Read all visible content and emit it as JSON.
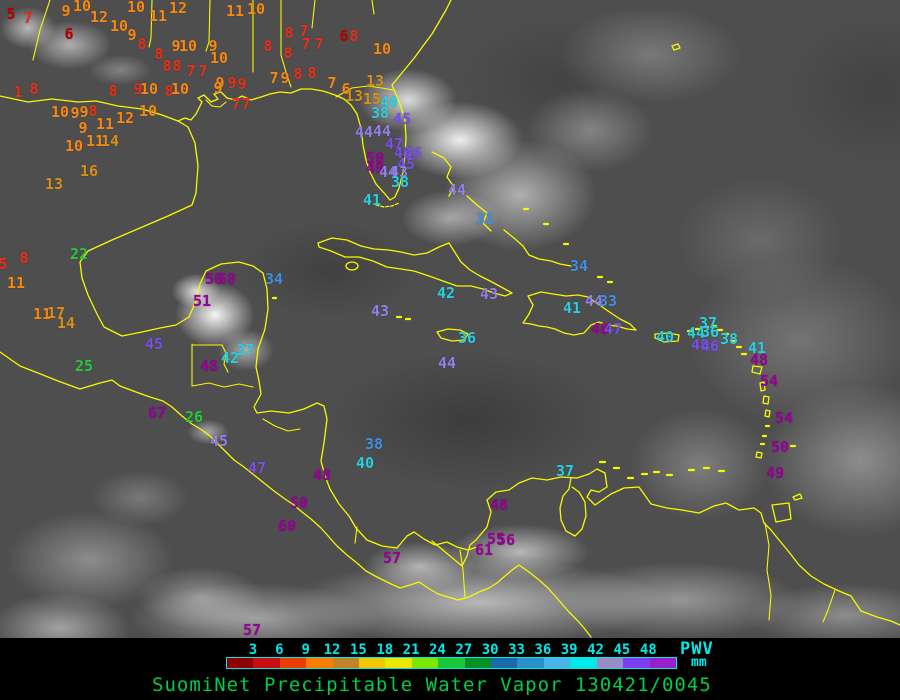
{
  "title": {
    "text": "SuomiNet Precipitable Water Vapor 130421/0045",
    "color": "#00cc44"
  },
  "legend": {
    "unit": "PWV",
    "unit_sub": "mm",
    "tick_color": "#00e8e8",
    "ticks": [
      "3",
      "6",
      "9",
      "12",
      "15",
      "18",
      "21",
      "24",
      "27",
      "30",
      "33",
      "36",
      "39",
      "42",
      "45",
      "48"
    ],
    "bar_colors": [
      "#8e0000",
      "#c80f0f",
      "#e83c00",
      "#f87e00",
      "#c08428",
      "#f0c800",
      "#e8e800",
      "#7ce800",
      "#18c838",
      "#089028",
      "#1a6ca8",
      "#2892c8",
      "#48b4e8",
      "#00e8e8",
      "#988cc8",
      "#7c3cf0",
      "#9820c8"
    ]
  },
  "palette": {
    "dark_red": "#b80000",
    "red": "#e83018",
    "orange": "#f88810",
    "tan": "#d89018",
    "green": "#28c840",
    "blue": "#4090e0",
    "cyan": "#28d0e0",
    "periwinkle": "#9080e8",
    "violet": "#7850e8",
    "magenta": "#980098",
    "coast_yellow": "#f8f800"
  },
  "stations": [
    [
      "5",
      11,
      14,
      "#b80000"
    ],
    [
      "7",
      28,
      18,
      "#e83018"
    ],
    [
      "9",
      66,
      11,
      "#f88810"
    ],
    [
      "10",
      82,
      6,
      "#f88810"
    ],
    [
      "10",
      136,
      7,
      "#f88810"
    ],
    [
      "12",
      178,
      8,
      "#f88810"
    ],
    [
      "11",
      235,
      11,
      "#f88810"
    ],
    [
      "10",
      256,
      9,
      "#f88810"
    ],
    [
      "12",
      99,
      17,
      "#f88810"
    ],
    [
      "11",
      158,
      16,
      "#f88810"
    ],
    [
      "10",
      119,
      26,
      "#f88810"
    ],
    [
      "6",
      69,
      34,
      "#b80000"
    ],
    [
      "9",
      132,
      35,
      "#f88810"
    ],
    [
      "8",
      142,
      44,
      "#e83018"
    ],
    [
      "8",
      289,
      33,
      "#e83018"
    ],
    [
      "7",
      304,
      31,
      "#e83018"
    ],
    [
      "6",
      344,
      36,
      "#b80000"
    ],
    [
      "8",
      354,
      36,
      "#e83018"
    ],
    [
      "9",
      176,
      46,
      "#f88810"
    ],
    [
      "10",
      188,
      46,
      "#f88810"
    ],
    [
      "9",
      213,
      46,
      "#f88810"
    ],
    [
      "8",
      268,
      46,
      "#e83018"
    ],
    [
      "7",
      306,
      44,
      "#e83018"
    ],
    [
      "7",
      319,
      44,
      "#e83018"
    ],
    [
      "10",
      382,
      49,
      "#f88810"
    ],
    [
      "8",
      159,
      54,
      "#e83018"
    ],
    [
      "10",
      219,
      58,
      "#f88810"
    ],
    [
      "8",
      288,
      53,
      "#e83018"
    ],
    [
      "8",
      167,
      66,
      "#e83018"
    ],
    [
      "8",
      177,
      66,
      "#e83018"
    ],
    [
      "7",
      191,
      71,
      "#e83018"
    ],
    [
      "7",
      203,
      71,
      "#e83018"
    ],
    [
      "9",
      220,
      83,
      "#f88810"
    ],
    [
      "9",
      232,
      83,
      "#e83018"
    ],
    [
      "9",
      242,
      84,
      "#e83018"
    ],
    [
      "7",
      274,
      78,
      "#f88810"
    ],
    [
      "9",
      285,
      78,
      "#f88810"
    ],
    [
      "8",
      298,
      74,
      "#e83018"
    ],
    [
      "8",
      312,
      73,
      "#e83018"
    ],
    [
      "7",
      332,
      83,
      "#f88810"
    ],
    [
      "6",
      346,
      89,
      "#f88810"
    ],
    [
      "13",
      375,
      81,
      "#d89018"
    ],
    [
      "1",
      18,
      92,
      "#e83018"
    ],
    [
      "8",
      34,
      89,
      "#e83018"
    ],
    [
      "8",
      113,
      91,
      "#e83018"
    ],
    [
      "9",
      138,
      89,
      "#e83018"
    ],
    [
      "10",
      149,
      89,
      "#f88810"
    ],
    [
      "8",
      169,
      91,
      "#e83018"
    ],
    [
      "10",
      180,
      89,
      "#f88810"
    ],
    [
      "9",
      218,
      88,
      "#f88810"
    ],
    [
      "7",
      236,
      104,
      "#e83018"
    ],
    [
      "7",
      246,
      104,
      "#e83018"
    ],
    [
      "13",
      354,
      96,
      "#d89018"
    ],
    [
      "15",
      372,
      99,
      "#d89018"
    ],
    [
      "10",
      60,
      112,
      "#f88810"
    ],
    [
      "9",
      75,
      113,
      "#f88810"
    ],
    [
      "9",
      84,
      112,
      "#f88810"
    ],
    [
      "8",
      93,
      111,
      "#e83018"
    ],
    [
      "12",
      125,
      118,
      "#f88810"
    ],
    [
      "10",
      148,
      111,
      "#f88810"
    ],
    [
      "9",
      83,
      128,
      "#f88810"
    ],
    [
      "11",
      105,
      124,
      "#f88810"
    ],
    [
      "10",
      74,
      146,
      "#f88810"
    ],
    [
      "11",
      95,
      141,
      "#f88810"
    ],
    [
      "14",
      110,
      141,
      "#d89018"
    ],
    [
      "16",
      89,
      171,
      "#d89018"
    ],
    [
      "13",
      54,
      184,
      "#d89018"
    ],
    [
      "40",
      389,
      102,
      "#28d0e0"
    ],
    [
      "38",
      380,
      113,
      "#28d0e0"
    ],
    [
      "45",
      402,
      119,
      "#7850e8"
    ],
    [
      "44",
      364,
      132,
      "#9080e8"
    ],
    [
      "44",
      382,
      131,
      "#9080e8"
    ],
    [
      "47",
      394,
      144,
      "#7850e8"
    ],
    [
      "45",
      403,
      153,
      "#7850e8"
    ],
    [
      "46",
      413,
      153,
      "#7850e8"
    ],
    [
      "50",
      375,
      158,
      "#980098"
    ],
    [
      "49",
      375,
      168,
      "#980098"
    ],
    [
      "45",
      406,
      164,
      "#7850e8"
    ],
    [
      "44",
      388,
      172,
      "#9080e8"
    ],
    [
      "43",
      399,
      172,
      "#9080e8"
    ],
    [
      "38",
      400,
      182,
      "#28d0e0"
    ],
    [
      "41",
      372,
      200,
      "#28d0e0"
    ],
    [
      "44",
      457,
      190,
      "#9080e8"
    ],
    [
      "31",
      485,
      219,
      "#4090e0"
    ],
    [
      "34",
      579,
      266,
      "#4090e0"
    ],
    [
      "5",
      3,
      264,
      "#e83018"
    ],
    [
      "8",
      24,
      258,
      "#e83018"
    ],
    [
      "22",
      79,
      254,
      "#28c840"
    ],
    [
      "11",
      16,
      283,
      "#f88810"
    ],
    [
      "11",
      42,
      314,
      "#f88810"
    ],
    [
      "17",
      56,
      313,
      "#d89018"
    ],
    [
      "14",
      66,
      323,
      "#d89018"
    ],
    [
      "50",
      214,
      279,
      "#980098"
    ],
    [
      "58",
      227,
      279,
      "#980098"
    ],
    [
      "34",
      274,
      279,
      "#4090e0"
    ],
    [
      "51",
      202,
      301,
      "#980098"
    ],
    [
      "45",
      154,
      344,
      "#7850e8"
    ],
    [
      "25",
      84,
      366,
      "#28c840"
    ],
    [
      "48",
      209,
      366,
      "#980098"
    ],
    [
      "42",
      230,
      358,
      "#28d0e0"
    ],
    [
      "37",
      245,
      350,
      "#28d0e0"
    ],
    [
      "67",
      157,
      413,
      "#980098"
    ],
    [
      "26",
      194,
      417,
      "#28c840"
    ],
    [
      "45",
      219,
      441,
      "#9080e8"
    ],
    [
      "47",
      257,
      468,
      "#7850e8"
    ],
    [
      "48",
      322,
      475,
      "#980098"
    ],
    [
      "50",
      299,
      503,
      "#980098"
    ],
    [
      "60",
      287,
      526,
      "#980098"
    ],
    [
      "57",
      392,
      558,
      "#980098"
    ],
    [
      "57",
      252,
      630,
      "#980098"
    ],
    [
      "43",
      380,
      311,
      "#9080e8"
    ],
    [
      "42",
      446,
      293,
      "#28d0e0"
    ],
    [
      "43",
      489,
      294,
      "#9080e8"
    ],
    [
      "36",
      467,
      338,
      "#28d0e0"
    ],
    [
      "44",
      447,
      363,
      "#9080e8"
    ],
    [
      "41",
      572,
      308,
      "#28d0e0"
    ],
    [
      "44",
      594,
      301,
      "#9080e8"
    ],
    [
      "33",
      608,
      301,
      "#4090e0"
    ],
    [
      "48",
      600,
      329,
      "#980098"
    ],
    [
      "47",
      613,
      329,
      "#7850e8"
    ],
    [
      "38",
      374,
      444,
      "#4090e0"
    ],
    [
      "40",
      365,
      463,
      "#28d0e0"
    ],
    [
      "37",
      565,
      471,
      "#28d0e0"
    ],
    [
      "48",
      499,
      505,
      "#980098"
    ],
    [
      "55",
      496,
      539,
      "#980098"
    ],
    [
      "56",
      506,
      540,
      "#980098"
    ],
    [
      "61",
      484,
      550,
      "#980098"
    ],
    [
      "40",
      665,
      337,
      "#28d0e0"
    ],
    [
      "44",
      696,
      333,
      "#28d0e0"
    ],
    [
      "37",
      708,
      323,
      "#28d0e0"
    ],
    [
      "36",
      710,
      332,
      "#28d0e0"
    ],
    [
      "48",
      700,
      345,
      "#7850e8"
    ],
    [
      "46",
      710,
      346,
      "#7850e8"
    ],
    [
      "38",
      729,
      339,
      "#28d0e0"
    ],
    [
      "41",
      757,
      348,
      "#28d0e0"
    ],
    [
      "48",
      759,
      360,
      "#980098"
    ],
    [
      "54",
      769,
      381,
      "#980098"
    ],
    [
      "54",
      784,
      418,
      "#980098"
    ],
    [
      "50",
      780,
      447,
      "#980098"
    ],
    [
      "49",
      775,
      473,
      "#980098"
    ]
  ]
}
